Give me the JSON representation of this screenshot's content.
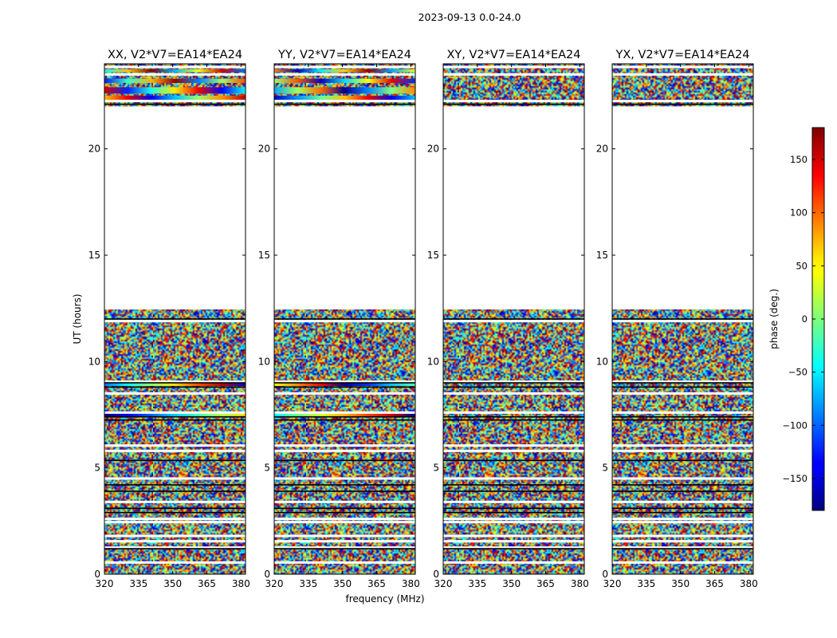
{
  "figure_title": "2023-09-13 0.0-24.0",
  "chart_data": {
    "type": "heatmap",
    "xlabel": "frequency (MHz)",
    "ylabel": "UT (hours)",
    "xlim": [
      320,
      382
    ],
    "ylim": [
      0,
      24
    ],
    "xticks": [
      320,
      335,
      350,
      365,
      380
    ],
    "yticks": [
      0,
      5,
      10,
      15,
      20
    ],
    "panels": [
      {
        "title": "XX, V2*V7=EA14*EA24",
        "pol": "XX"
      },
      {
        "title": "YY, V2*V7=EA14*EA24",
        "pol": "YY"
      },
      {
        "title": "XY, V2*V7=EA14*EA24",
        "pol": "XY"
      },
      {
        "title": "YX, V2*V7=EA14*EA24",
        "pol": "YX"
      }
    ],
    "data_gaps_hours": [
      [
        12.45,
        22.0
      ]
    ],
    "white_gap_rows_hours": [
      0.55,
      1.25,
      1.55,
      1.8,
      2.45,
      2.6,
      3.4,
      4.5,
      5.8,
      6.05,
      7.6,
      8.5,
      9.05,
      11.9,
      22.25,
      23.5,
      23.85
    ],
    "black_line_rows_hours": [
      1.2,
      2.9,
      3.1,
      3.9,
      4.2,
      5.35,
      7.25,
      7.4,
      8.8,
      9.0,
      12.0,
      22.1
    ],
    "colorbar": {
      "label": "phase (deg.)",
      "range": [
        -180,
        180
      ],
      "ticks": [
        -150,
        -100,
        -50,
        0,
        50,
        100,
        150
      ],
      "tick_labels": [
        "−150",
        "−100",
        "−50",
        "0",
        "50",
        "100",
        "150"
      ],
      "colormap": "jet"
    }
  }
}
